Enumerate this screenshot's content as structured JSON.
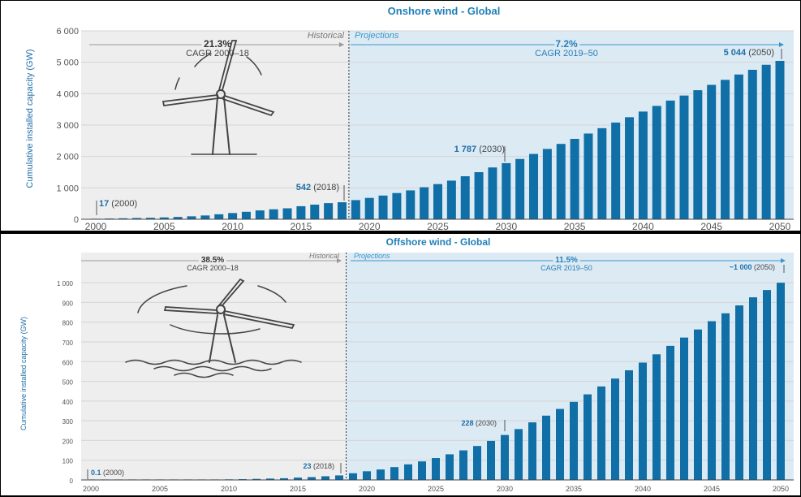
{
  "chart_data": [
    {
      "type": "bar",
      "title": "Onshore wind - Global",
      "ylabel": "Cumulative installed capacity (GW)",
      "ylim": [
        0,
        6000
      ],
      "yticks": [
        0,
        1000,
        2000,
        3000,
        4000,
        5000,
        6000
      ],
      "ytick_labels": [
        "0",
        "1 000",
        "2 000",
        "3 000",
        "4 000",
        "5 000",
        "6 000"
      ],
      "xtick_labels": [
        "2000",
        "2005",
        "2010",
        "2015",
        "2020",
        "2025",
        "2030",
        "2035",
        "2040",
        "2045",
        "2050"
      ],
      "categories": [
        2000,
        2001,
        2002,
        2003,
        2004,
        2005,
        2006,
        2007,
        2008,
        2009,
        2010,
        2011,
        2012,
        2013,
        2014,
        2015,
        2016,
        2017,
        2018,
        2019,
        2020,
        2021,
        2022,
        2023,
        2024,
        2025,
        2026,
        2027,
        2028,
        2029,
        2030,
        2031,
        2032,
        2033,
        2034,
        2035,
        2036,
        2037,
        2038,
        2039,
        2040,
        2041,
        2042,
        2043,
        2044,
        2045,
        2046,
        2047,
        2048,
        2049,
        2050
      ],
      "values": [
        17,
        24,
        31,
        40,
        47,
        59,
        74,
        94,
        121,
        159,
        198,
        238,
        282,
        318,
        349,
        416,
        466,
        514,
        542,
        610,
        680,
        755,
        835,
        920,
        1020,
        1120,
        1230,
        1370,
        1500,
        1650,
        1787,
        1920,
        2080,
        2240,
        2400,
        2560,
        2730,
        2900,
        3080,
        3250,
        3430,
        3610,
        3780,
        3940,
        4110,
        4280,
        4440,
        4610,
        4760,
        4920,
        5044
      ],
      "historical_label": "Historical",
      "projections_label": "Projections",
      "cagr_hist_value": "21.3%",
      "cagr_hist_label": "CAGR 2000–18",
      "cagr_proj_value": "7.2%",
      "cagr_proj_label": "CAGR 2019–50",
      "annotations": [
        {
          "bold": "17",
          "rest": "(2000)"
        },
        {
          "bold": "542",
          "rest": "(2018)"
        },
        {
          "bold": "1 787",
          "rest": "(2030)"
        },
        {
          "bold": "5 044",
          "rest": "(2050)"
        }
      ],
      "colors": {
        "bar": "#0f6fa6",
        "hist_bg": "#eeeeee",
        "proj_bg": "#dceaf4",
        "accent": "#3a96c9"
      }
    },
    {
      "type": "bar",
      "title": "Offshore wind - Global",
      "ylabel": "Cumulative installed capacity (GW)",
      "ylim": [
        0,
        1050
      ],
      "yticks": [
        0,
        100,
        200,
        300,
        400,
        500,
        600,
        700,
        800,
        900,
        1000
      ],
      "ytick_labels": [
        "0",
        "100",
        "200",
        "300",
        "400",
        "500",
        "600",
        "700",
        "800",
        "900",
        "1 000"
      ],
      "xtick_labels": [
        "2000",
        "2005",
        "2010",
        "2015",
        "2020",
        "2025",
        "2030",
        "2035",
        "2040",
        "2045",
        "2050"
      ],
      "categories": [
        2000,
        2001,
        2002,
        2003,
        2004,
        2005,
        2006,
        2007,
        2008,
        2009,
        2010,
        2011,
        2012,
        2013,
        2014,
        2015,
        2016,
        2017,
        2018,
        2019,
        2020,
        2021,
        2022,
        2023,
        2024,
        2025,
        2026,
        2027,
        2028,
        2029,
        2030,
        2031,
        2032,
        2033,
        2034,
        2035,
        2036,
        2037,
        2038,
        2039,
        2040,
        2041,
        2042,
        2043,
        2044,
        2045,
        2046,
        2047,
        2048,
        2049,
        2050
      ],
      "values": [
        0.1,
        0.1,
        0.2,
        0.4,
        0.5,
        0.7,
        0.9,
        1.1,
        1.5,
        2,
        3,
        4,
        5.3,
        7,
        8.7,
        12,
        14.4,
        18.8,
        23,
        34,
        44,
        53,
        65,
        79,
        94,
        111,
        130,
        150,
        172,
        198,
        228,
        258,
        292,
        326,
        360,
        396,
        434,
        474,
        514,
        556,
        595,
        637,
        680,
        722,
        763,
        805,
        845,
        885,
        926,
        963,
        1000
      ],
      "historical_label": "Historical",
      "projections_label": "Projections",
      "cagr_hist_value": "38.5%",
      "cagr_hist_label": "CAGR 2000–18",
      "cagr_proj_value": "11.5%",
      "cagr_proj_label": "CAGR 2019–50",
      "annotations": [
        {
          "bold": "0.1",
          "rest": "(2000)"
        },
        {
          "bold": "23",
          "rest": "(2018)"
        },
        {
          "bold": "228",
          "rest": "(2030)"
        },
        {
          "bold": "~1 000",
          "rest": "(2050)"
        }
      ],
      "colors": {
        "bar": "#0f6fa6",
        "hist_bg": "#eeeeee",
        "proj_bg": "#dceaf4",
        "accent": "#3a96c9"
      }
    }
  ]
}
